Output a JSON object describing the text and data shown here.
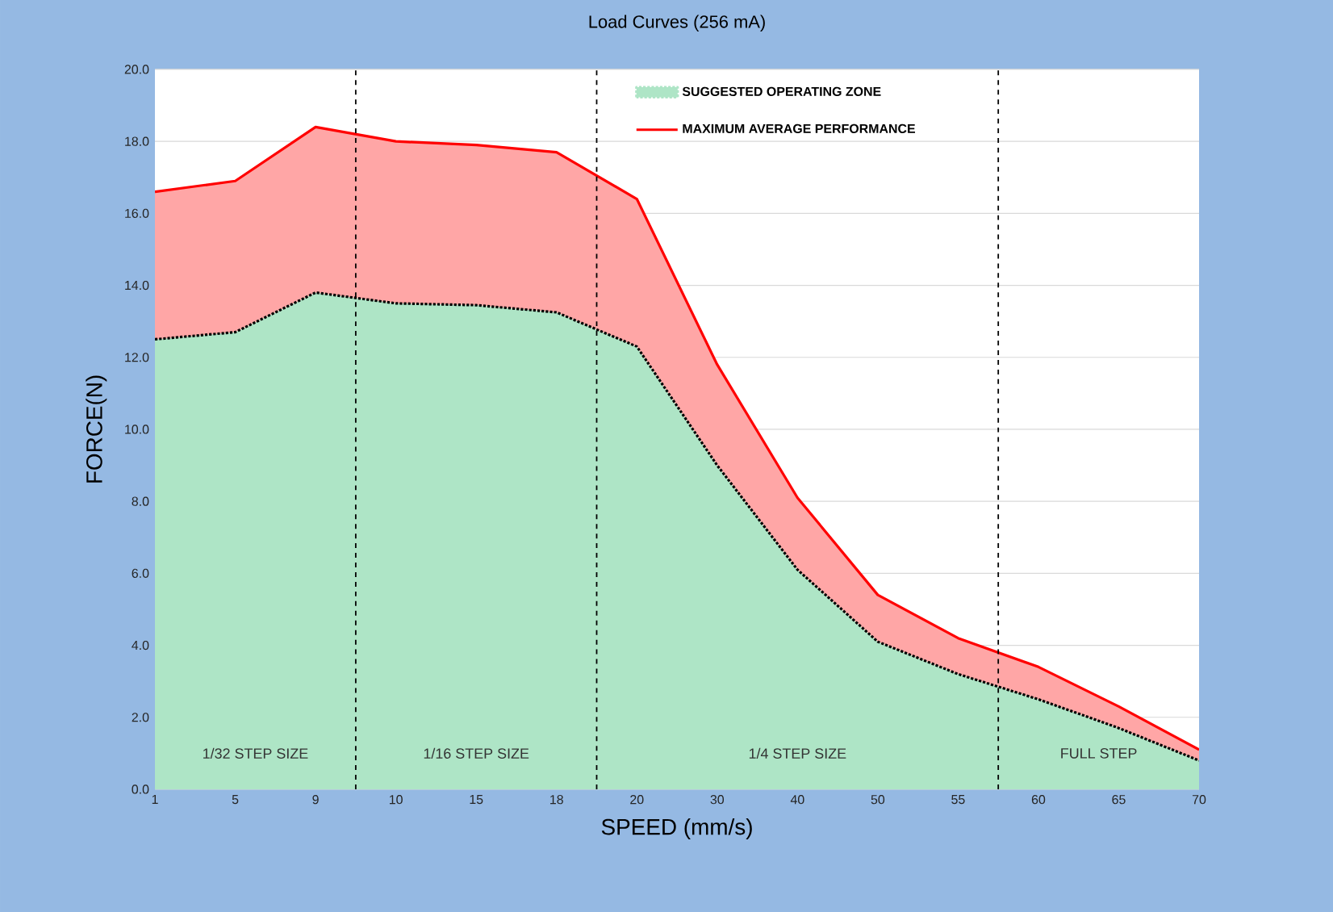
{
  "chart_data": {
    "type": "area",
    "title": "Load Curves (256 mA)",
    "xlabel": "SPEED (mm/s)",
    "ylabel": "FORCE(N)",
    "categories": [
      "1",
      "5",
      "9",
      "10",
      "15",
      "18",
      "20",
      "30",
      "40",
      "50",
      "55",
      "60",
      "65",
      "70"
    ],
    "series": [
      {
        "name": "SUGGESTED OPERATING ZONE",
        "color": "#aee5c6",
        "line_style": "dotted",
        "values": [
          12.5,
          12.7,
          13.8,
          13.5,
          13.45,
          13.25,
          12.3,
          9.0,
          6.1,
          4.1,
          3.2,
          2.5,
          1.7,
          0.8
        ]
      },
      {
        "name": "MAXIMUM AVERAGE PERFORMANCE",
        "color": "#ff0000",
        "line_style": "solid",
        "values": [
          16.6,
          16.9,
          18.4,
          18.0,
          17.9,
          17.7,
          16.4,
          11.8,
          8.1,
          5.4,
          4.2,
          3.4,
          2.3,
          1.1
        ]
      }
    ],
    "ylim": [
      0,
      20
    ],
    "yticks": [
      {
        "value": 0,
        "label": "0.0"
      },
      {
        "value": 2,
        "label": "2.0"
      },
      {
        "value": 4,
        "label": "4.0"
      },
      {
        "value": 6,
        "label": "6.0"
      },
      {
        "value": 8,
        "label": "8.0"
      },
      {
        "value": 10,
        "label": "10.0"
      },
      {
        "value": 12,
        "label": "12.0"
      },
      {
        "value": 14,
        "label": "14.0"
      },
      {
        "value": 16,
        "label": "16.0"
      },
      {
        "value": 18,
        "label": "18.0"
      },
      {
        "value": 20,
        "label": "20.0"
      }
    ],
    "grid": "y",
    "legend": "top right",
    "annotations": [
      "1/32 STEP SIZE",
      "1/16 STEP SIZE",
      "1/4 STEP SIZE",
      "FULL STEP"
    ]
  }
}
